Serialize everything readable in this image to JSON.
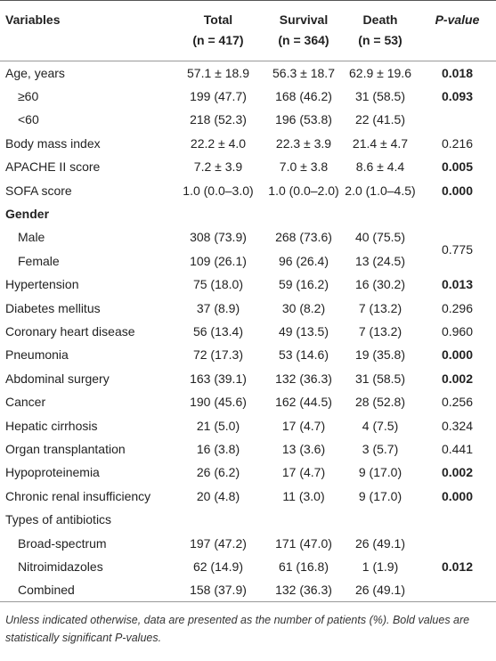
{
  "table": {
    "header": {
      "variables": "Variables",
      "columns": [
        {
          "title": "Total",
          "n": "(n = 417)"
        },
        {
          "title": "Survival",
          "n": "(n = 364)"
        },
        {
          "title": "Death",
          "n": "(n = 53)"
        }
      ],
      "p_value": "P-value"
    },
    "rows": [
      {
        "label": "Age, years",
        "cells": [
          "57.1 ± 18.9",
          "56.3 ± 18.7",
          "62.9 ± 19.6"
        ],
        "p_value": "0.018",
        "significant": true,
        "subrows": [
          {
            "label": "≥60",
            "cells": [
              "199 (47.7)",
              "168 (46.2)",
              "31 (58.5)"
            ],
            "p_value": "0.093",
            "significant": true
          },
          {
            "label": "<60",
            "cells": [
              "218 (52.3)",
              "196 (53.8)",
              "22 (41.5)"
            ]
          }
        ]
      },
      {
        "label": "Body mass index",
        "cells": [
          "22.2 ± 4.0",
          "22.3 ± 3.9",
          "21.4 ± 4.7"
        ],
        "p_value": "0.216",
        "significant": false
      },
      {
        "label": "APACHE II score",
        "cells": [
          "7.2 ± 3.9",
          "7.0 ± 3.8",
          "8.6 ± 4.4"
        ],
        "p_value": "0.005",
        "significant": true
      },
      {
        "label": "SOFA score",
        "cells": [
          "1.0 (0.0–3.0)",
          "1.0 (0.0–2.0)",
          "2.0 (1.0–4.5)"
        ],
        "p_value": "0.000",
        "significant": true
      },
      {
        "label": "Gender",
        "heading": true,
        "group_p_value": "0.775",
        "significant": false,
        "subrows": [
          {
            "label": "Male",
            "cells": [
              "308 (73.9)",
              "268 (73.6)",
              "40 (75.5)"
            ]
          },
          {
            "label": "Female",
            "cells": [
              "109 (26.1)",
              "96 (26.4)",
              "13 (24.5)"
            ]
          }
        ]
      },
      {
        "label": "Hypertension",
        "cells": [
          "75 (18.0)",
          "59 (16.2)",
          "16 (30.2)"
        ],
        "p_value": "0.013",
        "significant": true
      },
      {
        "label": "Diabetes mellitus",
        "cells": [
          "37 (8.9)",
          "30 (8.2)",
          "7 (13.2)"
        ],
        "p_value": "0.296",
        "significant": false
      },
      {
        "label": "Coronary heart disease",
        "cells": [
          "56 (13.4)",
          "49 (13.5)",
          "7 (13.2)"
        ],
        "p_value": "0.960",
        "significant": false
      },
      {
        "label": "Pneumonia",
        "cells": [
          "72 (17.3)",
          "53 (14.6)",
          "19 (35.8)"
        ],
        "p_value": "0.000",
        "significant": true
      },
      {
        "label": "Abdominal surgery",
        "cells": [
          "163 (39.1)",
          "132 (36.3)",
          "31 (58.5)"
        ],
        "p_value": "0.002",
        "significant": true
      },
      {
        "label": "Cancer",
        "cells": [
          "190 (45.6)",
          "162 (44.5)",
          "28 (52.8)"
        ],
        "p_value": "0.256",
        "significant": false
      },
      {
        "label": "Hepatic cirrhosis",
        "cells": [
          "21 (5.0)",
          "17 (4.7)",
          "4 (7.5)"
        ],
        "p_value": "0.324",
        "significant": false
      },
      {
        "label": "Organ transplantation",
        "cells": [
          "16 (3.8)",
          "13 (3.6)",
          "3 (5.7)"
        ],
        "p_value": "0.441",
        "significant": false
      },
      {
        "label": "Hypoproteinemia",
        "cells": [
          "26 (6.2)",
          "17 (4.7)",
          "9 (17.0)"
        ],
        "p_value": "0.002",
        "significant": true
      },
      {
        "label": "Chronic renal insufficiency",
        "cells": [
          "20 (4.8)",
          "11 (3.0)",
          "9 (17.0)"
        ],
        "p_value": "0.000",
        "significant": true
      },
      {
        "label": "Types of antibiotics",
        "subrows": [
          {
            "label": "Broad-spectrum",
            "cells": [
              "197 (47.2)",
              "171 (47.0)",
              "26 (49.1)"
            ]
          },
          {
            "label": "Nitroimidazoles",
            "cells": [
              "62 (14.9)",
              "61 (16.8)",
              "1 (1.9)"
            ],
            "p_value": "0.012",
            "significant": true
          },
          {
            "label": "Combined",
            "cells": [
              "158 (37.9)",
              "132 (36.3)",
              "26 (49.1)"
            ]
          }
        ]
      }
    ]
  },
  "footnote": "Unless indicated otherwise, data are presented as the number of patients (%). Bold values are statistically significant P-values."
}
